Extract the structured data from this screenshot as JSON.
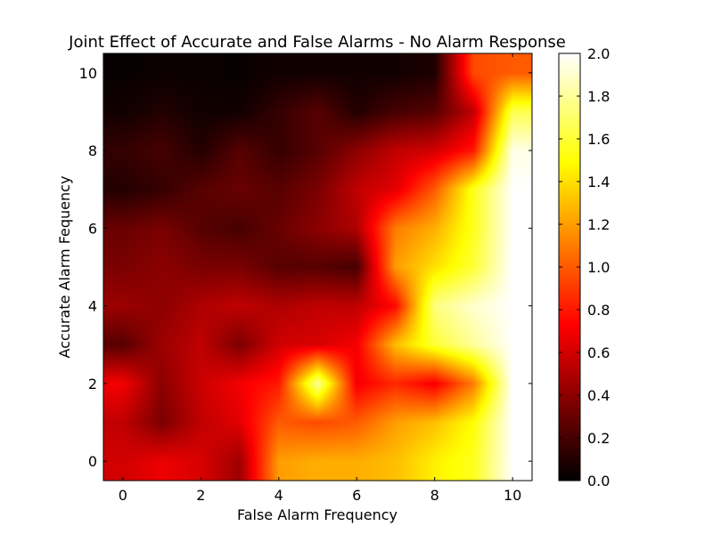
{
  "chart_data": {
    "type": "heatmap",
    "title": "Joint Effect of Accurate and False Alarms - No Alarm Response",
    "xlabel": "False Alarm Frequency",
    "ylabel": "Accurate Alarm Fequency",
    "x": [
      0,
      1,
      2,
      3,
      4,
      5,
      6,
      7,
      8,
      9,
      10
    ],
    "y": [
      0,
      1,
      2,
      3,
      4,
      5,
      6,
      7,
      8,
      9,
      10
    ],
    "xlim": [
      -0.5,
      10.5
    ],
    "ylim": [
      -0.5,
      10.5
    ],
    "xticks": [
      0,
      2,
      4,
      6,
      8,
      10
    ],
    "yticks": [
      0,
      2,
      4,
      6,
      8,
      10
    ],
    "colormap": "hot",
    "interpolation": "bilinear",
    "colorbar": {
      "vmin": 0.0,
      "vmax": 2.0,
      "ticks": [
        "0.0",
        "0.2",
        "0.4",
        "0.6",
        "0.8",
        "1.0",
        "1.2",
        "1.4",
        "1.6",
        "1.8",
        "2.0"
      ]
    },
    "z_rows_y0_to_y10": [
      [
        0.6,
        0.68,
        0.62,
        0.45,
        1.2,
        1.25,
        1.25,
        1.3,
        1.45,
        1.55,
        2.0
      ],
      [
        0.55,
        0.35,
        0.55,
        0.65,
        1.0,
        0.95,
        1.0,
        1.2,
        1.3,
        1.5,
        2.0
      ],
      [
        0.7,
        0.4,
        0.58,
        0.7,
        0.8,
        1.8,
        0.7,
        0.85,
        0.7,
        1.1,
        2.0
      ],
      [
        0.25,
        0.45,
        0.55,
        0.35,
        0.6,
        0.62,
        0.7,
        1.3,
        1.6,
        1.8,
        2.0
      ],
      [
        0.45,
        0.4,
        0.5,
        0.55,
        0.5,
        0.55,
        0.55,
        0.75,
        1.75,
        1.9,
        2.0
      ],
      [
        0.35,
        0.4,
        0.35,
        0.35,
        0.25,
        0.25,
        0.2,
        1.2,
        1.4,
        1.6,
        2.0
      ],
      [
        0.3,
        0.35,
        0.25,
        0.2,
        0.3,
        0.4,
        0.5,
        1.1,
        1.25,
        1.55,
        2.0
      ],
      [
        0.1,
        0.15,
        0.25,
        0.3,
        0.25,
        0.35,
        0.55,
        0.65,
        1.0,
        1.55,
        2.0
      ],
      [
        0.15,
        0.2,
        0.1,
        0.25,
        0.15,
        0.25,
        0.4,
        0.55,
        0.6,
        0.8,
        1.95
      ],
      [
        0.05,
        0.1,
        0.05,
        0.05,
        0.15,
        0.25,
        0.1,
        0.2,
        0.25,
        0.55,
        1.65
      ],
      [
        0.02,
        0.03,
        0.03,
        0.02,
        0.05,
        0.05,
        0.05,
        0.05,
        0.08,
        0.95,
        1.0
      ]
    ]
  }
}
